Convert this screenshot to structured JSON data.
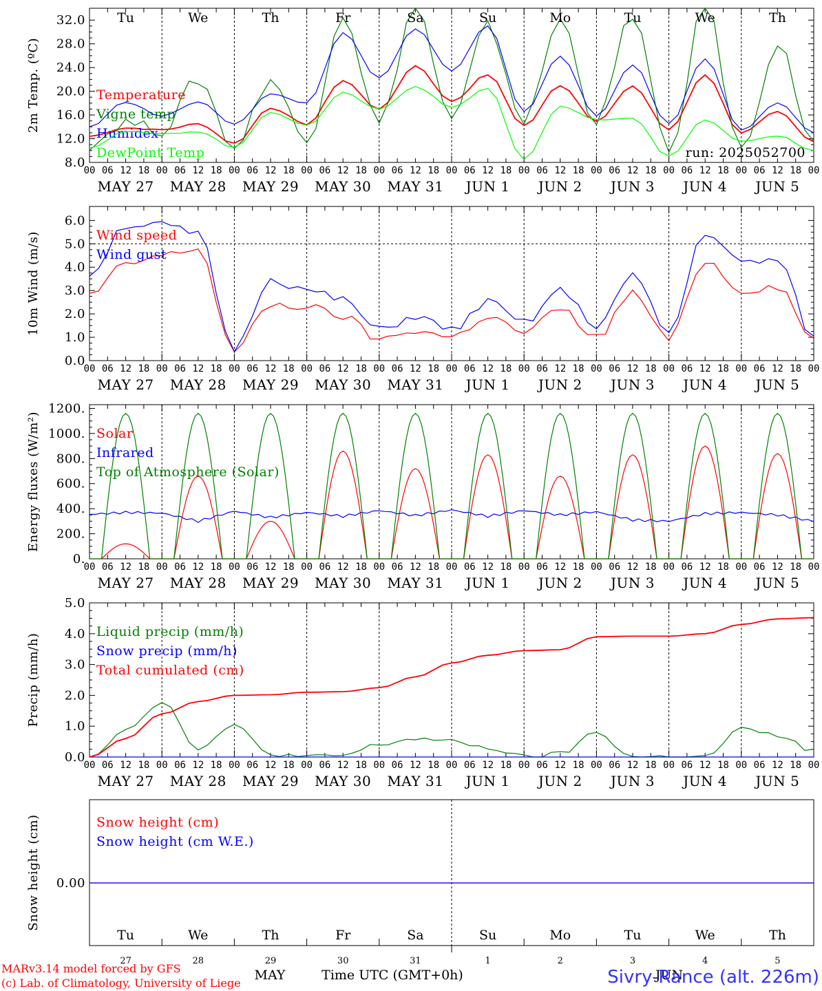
{
  "chart_data": [
    {
      "type": "line",
      "ylabel": "2m Temp. (ºC)",
      "ylim": [
        8,
        34
      ],
      "yticks": [
        "8.0",
        "12.0",
        "16.0",
        "20.0",
        "24.0",
        "28.0",
        "32.0"
      ],
      "x_hours": [
        0,
        12,
        24,
        36,
        48,
        60,
        72,
        84,
        96,
        108,
        120,
        132,
        144,
        156,
        168,
        180,
        192,
        204,
        216,
        228,
        240
      ],
      "legend_placement": "top-left",
      "run_label": "run: 2025052700",
      "grid": "vertical dashed lines at day boundaries",
      "series": [
        {
          "name": "Temperature",
          "color": "#ff0000",
          "values": [
            12.4,
            13.8,
            13.5,
            14.5,
            11.2,
            17.2,
            14.4,
            21.8,
            17.0,
            24.3,
            18.3,
            22.8,
            14.2,
            21.0,
            15.0,
            20.8,
            13.5,
            22.8,
            13.0,
            16.5,
            11.5
          ]
        },
        {
          "name": "Vigne temp",
          "color": "#008000",
          "values": [
            11.0,
            14.8,
            13.4,
            22.0,
            10.5,
            22.0,
            11.5,
            33.0,
            14.5,
            34.5,
            15.0,
            31.0,
            15.0,
            32.0,
            14.8,
            33.0,
            9.5,
            34.5,
            10.0,
            28.0,
            11.5
          ]
        },
        {
          "name": "Humidex",
          "color": "#0000ff",
          "values": [
            14.0,
            18.2,
            15.8,
            18.2,
            14.5,
            19.5,
            18.0,
            29.8,
            22.2,
            30.5,
            23.5,
            31.0,
            16.5,
            26.0,
            15.8,
            24.5,
            14.5,
            25.5,
            13.5,
            18.0,
            13.0
          ]
        },
        {
          "name": "DewPoint Temp",
          "color": "#00ff00",
          "values": [
            10.5,
            13.2,
            12.8,
            13.2,
            10.5,
            16.5,
            14.2,
            19.8,
            17.0,
            20.8,
            17.3,
            20.5,
            8.5,
            17.5,
            15.2,
            15.5,
            9.0,
            15.2,
            11.5,
            12.5,
            10.0
          ]
        }
      ]
    },
    {
      "type": "line",
      "ylabel": "10m Wind (m/s)",
      "ylim": [
        0,
        6.6
      ],
      "yticks": [
        "0.0",
        "1.0",
        "2.0",
        "3.0",
        "4.0",
        "5.0",
        "6.0"
      ],
      "x_hours": [
        0,
        12,
        24,
        36,
        48,
        60,
        72,
        84,
        96,
        108,
        120,
        132,
        144,
        156,
        168,
        180,
        192,
        204,
        216,
        228,
        240
      ],
      "legend_placement": "top-left",
      "reference_line": 5.0,
      "series": [
        {
          "name": "Wind speed",
          "color": "#ff0000",
          "values": [
            2.8,
            4.1,
            4.5,
            4.8,
            0.4,
            2.4,
            2.3,
            1.9,
            0.9,
            1.3,
            1.0,
            1.9,
            1.2,
            2.2,
            1.0,
            2.9,
            0.9,
            4.3,
            3.0,
            3.2,
            0.9
          ]
        },
        {
          "name": "Wind gust",
          "color": "#0000ff",
          "values": [
            3.7,
            5.8,
            5.8,
            5.4,
            0.5,
            3.5,
            3.0,
            2.6,
            1.3,
            1.9,
            1.3,
            2.5,
            1.6,
            3.0,
            1.5,
            3.6,
            1.2,
            5.5,
            4.2,
            4.3,
            1.0
          ]
        }
      ]
    },
    {
      "type": "line",
      "ylabel": "Energy fluxes (W/m²)",
      "ylim": [
        0,
        1230
      ],
      "yticks": [
        "0.",
        "200.",
        "400.",
        "600.",
        "800.",
        "1000.",
        "1200."
      ],
      "legend_placement": "top-left",
      "series": [
        {
          "name": "Solar",
          "color": "#ff0000",
          "daily_peaks": [
            120,
            660,
            300,
            860,
            720,
            830,
            660,
            830,
            900,
            840
          ]
        },
        {
          "name": "Infrared",
          "color": "#0000ff",
          "values": [
            355,
            370,
            365,
            300,
            380,
            330,
            370,
            340,
            385,
            345,
            390,
            340,
            385,
            350,
            375,
            310,
            300,
            360,
            370,
            350,
            300
          ]
        },
        {
          "name": "Top of Atmosphere (Solar)",
          "color": "#008000",
          "daily_peaks": [
            1160,
            1160,
            1160,
            1160,
            1160,
            1160,
            1160,
            1160,
            1160,
            1160
          ]
        }
      ]
    },
    {
      "type": "line",
      "ylabel": "Precip (mm/h)",
      "ylim": [
        0,
        5.0
      ],
      "yticks": [
        "0.0",
        "1.0",
        "2.0",
        "3.0",
        "4.0",
        "5.0"
      ],
      "x_hours": [
        0,
        12,
        24,
        36,
        48,
        60,
        72,
        84,
        96,
        108,
        120,
        132,
        144,
        156,
        168,
        180,
        192,
        204,
        216,
        228,
        240
      ],
      "legend_placement": "top-left",
      "series": [
        {
          "name": "Liquid precip (mm/h)",
          "color": "#008000",
          "values": [
            0,
            0.9,
            1.8,
            0.3,
            1.0,
            0.1,
            0,
            0.05,
            0.4,
            0.6,
            0.5,
            0.3,
            0,
            0.1,
            0.8,
            0,
            0,
            0,
            0.9,
            0.7,
            0.2
          ]
        },
        {
          "name": "Snow precip (mm/h)",
          "color": "#0000ff",
          "values": [
            0,
            0,
            0,
            0,
            0,
            0,
            0,
            0,
            0,
            0,
            0,
            0,
            0,
            0,
            0,
            0,
            0,
            0,
            0,
            0,
            0
          ]
        },
        {
          "name": "Total cumulated (cm)",
          "color": "#ff0000",
          "values": [
            0,
            0.6,
            1.4,
            1.8,
            2.0,
            2.02,
            2.1,
            2.12,
            2.25,
            2.6,
            3.05,
            3.3,
            3.45,
            3.48,
            3.9,
            3.92,
            3.92,
            4.0,
            4.3,
            4.48,
            4.52
          ]
        }
      ]
    },
    {
      "type": "line",
      "ylabel": "Snow height (cm)",
      "yticks": [
        "0.00"
      ],
      "legend_placement": "top-left",
      "series": [
        {
          "name": "Snow height (cm)",
          "color": "#ff0000",
          "values": [
            0,
            0
          ]
        },
        {
          "name": "Snow height (cm W.E.)",
          "color": "#0000ff",
          "values": [
            0,
            0
          ]
        }
      ]
    }
  ],
  "x_axis": {
    "hour_labels": [
      "00",
      "06",
      "12",
      "18"
    ],
    "final_label": "00",
    "date_labels": [
      "MAY 27",
      "MAY 28",
      "MAY 29",
      "MAY 30",
      "MAY 31",
      "JUN  1",
      "JUN  2",
      "JUN  3",
      "JUN  4",
      "JUN  5"
    ],
    "day_abbr": [
      "Tu",
      "We",
      "Th",
      "Fr",
      "Sa",
      "Su",
      "Mo",
      "Tu",
      "We",
      "Th"
    ],
    "day_colors": [
      "#000000",
      "#000000",
      "#000000",
      "#000000",
      "#ff0000",
      "#ff0000",
      "#000000",
      "#000000",
      "#000000",
      "#000000"
    ],
    "day_numbers": [
      "27",
      "28",
      "29",
      "30",
      "31",
      "1",
      "2",
      "3",
      "4",
      "5"
    ],
    "month_left": "MAY",
    "month_right": "JUN",
    "axis_title": "Time UTC (GMT+0h)"
  },
  "footer": {
    "model_line": "MARv3.14 model forced by GFS",
    "credit_line": "(c) Lab. of Climatology, University of Liege",
    "station": "Sivry-Rance (alt. 226m)"
  }
}
